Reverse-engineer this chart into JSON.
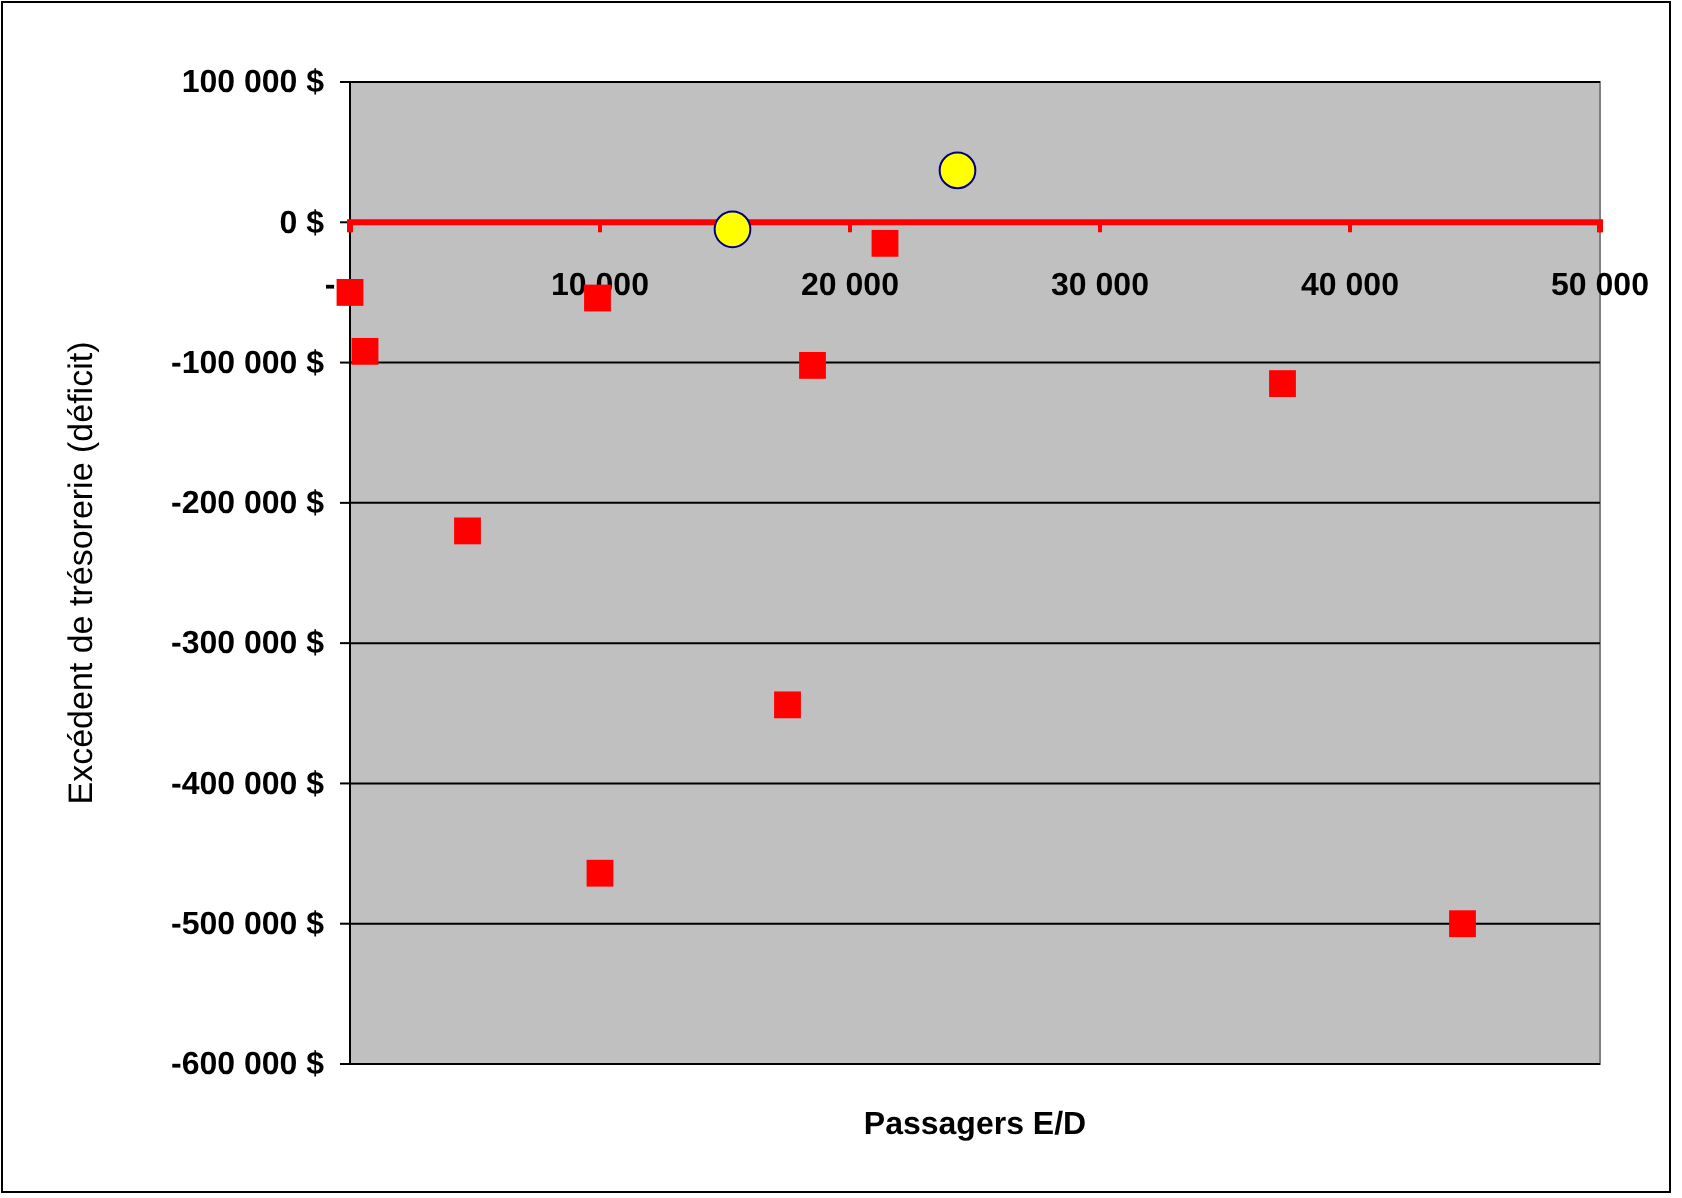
{
  "chart_data": {
    "type": "scatter",
    "xlabel": "Passagers E/D",
    "ylabel": "Excédent de trésorerie (déficit)",
    "xlim": [
      0,
      50000
    ],
    "xticks": [
      {
        "value": 0,
        "label": "-"
      },
      {
        "value": 10000,
        "label": "10 000"
      },
      {
        "value": 20000,
        "label": "20 000"
      },
      {
        "value": 30000,
        "label": "30 000"
      },
      {
        "value": 40000,
        "label": "40 000"
      },
      {
        "value": 50000,
        "label": "50 000"
      }
    ],
    "ylim": [
      -600000,
      100000
    ],
    "yticks": [
      {
        "value": 100000,
        "label": "100 000 $"
      },
      {
        "value": 0,
        "label": "0 $"
      },
      {
        "value": -100000,
        "label": "-100 000 $"
      },
      {
        "value": -200000,
        "label": "-200 000 $"
      },
      {
        "value": -300000,
        "label": "-300 000 $"
      },
      {
        "value": -400000,
        "label": "-400 000 $"
      },
      {
        "value": -500000,
        "label": "-500 000 $"
      },
      {
        "value": -600000,
        "label": "-600 000 $"
      }
    ],
    "grid": "y",
    "series": [
      {
        "color": "#ff0000",
        "marker": "square",
        "x": [
          0,
          600,
          4700,
          9900,
          10000,
          17500,
          18500,
          21400,
          37300,
          44500
        ],
        "values": [
          -50000,
          -92000,
          -220000,
          -54000,
          -464000,
          -344000,
          -102000,
          -15000,
          -115000,
          -500000
        ]
      },
      {
        "color": "#ffff00",
        "marker": "circle",
        "x": [
          15300,
          24300
        ],
        "values": [
          -5000,
          37000
        ]
      }
    ]
  }
}
